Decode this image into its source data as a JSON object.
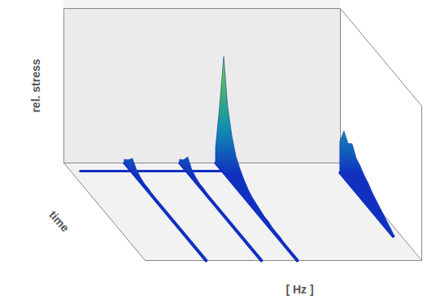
{
  "chart_data": {
    "type": "waterfall",
    "x_label": "[ Hz ]",
    "y_label": "time",
    "z_label": "rel. stress",
    "tick_labels": false,
    "xlim": [
      0,
      1
    ],
    "ylim": [
      0,
      1
    ],
    "zlim": [
      0,
      1
    ],
    "time": [
      0,
      0.05,
      0.1,
      0.15,
      0.2,
      0.25,
      0.3,
      0.35,
      0.4,
      0.45,
      0.5,
      0.55,
      0.6,
      0.65,
      0.7,
      0.75,
      0.8,
      0.85,
      0.9,
      0.95,
      1
    ],
    "series": [
      {
        "frequency": 0.22,
        "values": [
          0.02,
          0.05,
          0.09,
          0.05,
          0.03,
          0.02,
          0.02,
          0.01,
          0.01,
          0.01,
          0.01,
          0.01,
          0.01,
          0.01,
          0.01,
          0.01,
          0.01,
          0.01,
          0.01,
          0.01,
          0.01
        ]
      },
      {
        "frequency": 0.42,
        "values": [
          0.02,
          0.05,
          0.1,
          0.05,
          0.03,
          0.02,
          0.02,
          0.01,
          0.01,
          0.01,
          0.01,
          0.01,
          0.01,
          0.01,
          0.01,
          0.01,
          0.01,
          0.01,
          0.01,
          0.01,
          0.01
        ]
      },
      {
        "frequency": 0.55,
        "values": [
          0.1,
          0.4,
          0.75,
          0.45,
          0.3,
          0.2,
          0.15,
          0.11,
          0.08,
          0.06,
          0.05,
          0.04,
          0.03,
          0.03,
          0.02,
          0.02,
          0.02,
          0.01,
          0.01,
          0.01,
          0.01
        ]
      },
      {
        "frequency": 0.97,
        "values": [
          null,
          null,
          0.2,
          0.3,
          0.25,
          0.28,
          0.22,
          0.2,
          0.17,
          0.15,
          0.12,
          0.1,
          0.08,
          0.06,
          0.04,
          0.02,
          null,
          null,
          null,
          null,
          null
        ]
      }
    ],
    "broadband": {
      "time": 0.1,
      "frequencies": [
        0.03,
        0.55
      ],
      "values": [
        0.01,
        0.01
      ]
    }
  }
}
